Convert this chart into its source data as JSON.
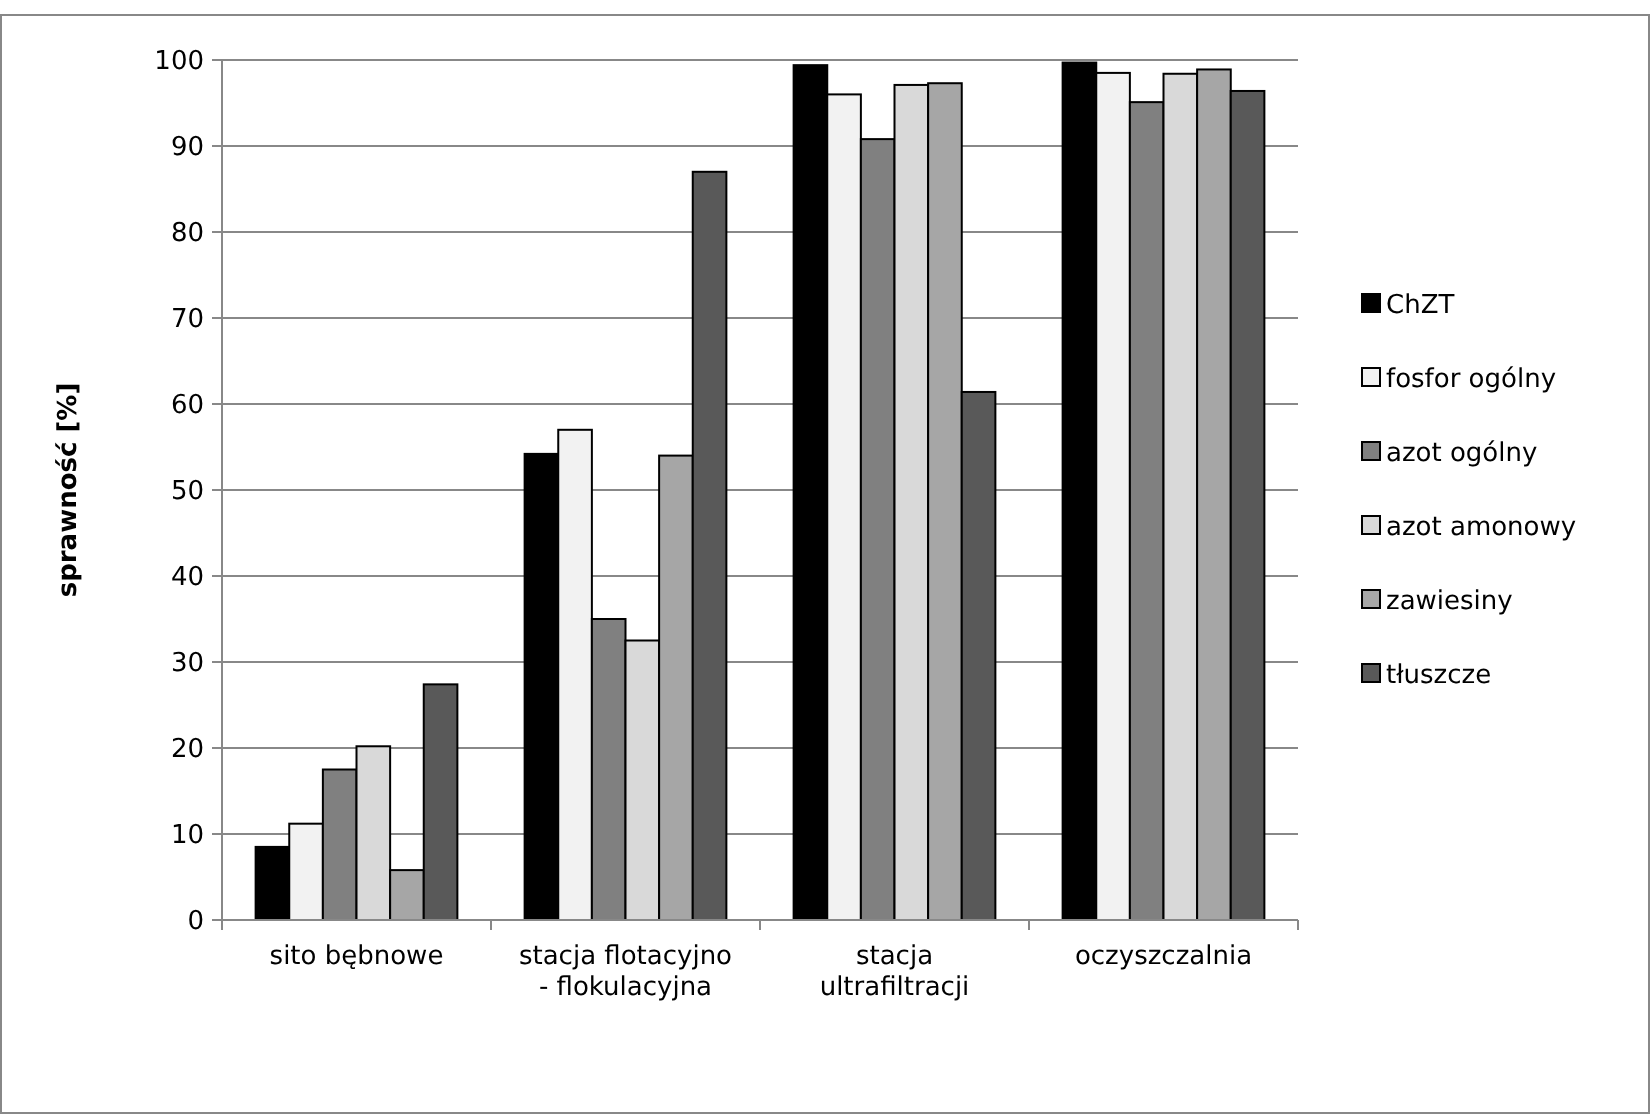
{
  "chart_data": {
    "type": "bar",
    "ylabel": "sprawność [%]",
    "categories": [
      "sito bębnowe",
      "stacja flotacyjno\n- flokulacyjna",
      "stacja\nultrafiltracji",
      "oczyszczalnia"
    ],
    "series": [
      {
        "name": "ChZT",
        "color": "#000000",
        "values": [
          8.5,
          54.2,
          99.4,
          99.7
        ]
      },
      {
        "name": "fosfor ogólny",
        "color": "#f2f2f2",
        "values": [
          11.2,
          57,
          96,
          98.5
        ]
      },
      {
        "name": "azot ogólny",
        "color": "#808080",
        "values": [
          17.5,
          35,
          90.8,
          95.1
        ]
      },
      {
        "name": "azot amonowy",
        "color": "#d9d9d9",
        "values": [
          20.2,
          32.5,
          97.1,
          98.4
        ]
      },
      {
        "name": "zawiesiny",
        "color": "#a6a6a6",
        "values": [
          5.8,
          54,
          97.3,
          98.9
        ]
      },
      {
        "name": "tłuszcze",
        "color": "#595959",
        "values": [
          27.4,
          87,
          61.4,
          96.4
        ]
      }
    ],
    "ylim": [
      0,
      100
    ],
    "yticks": [
      0,
      10,
      20,
      30,
      40,
      50,
      60,
      70,
      80,
      90,
      100
    ],
    "grid": "y",
    "legend": "right"
  }
}
